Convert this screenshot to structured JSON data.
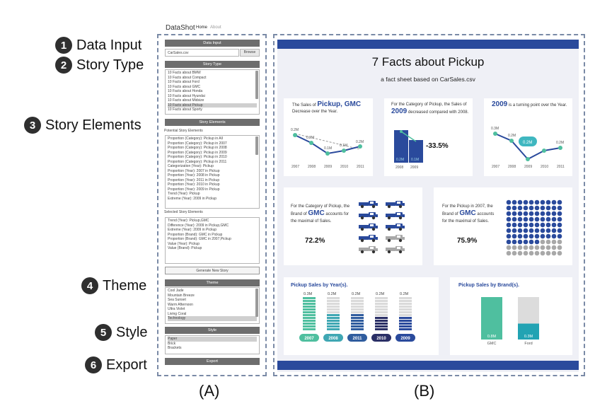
{
  "steps": [
    {
      "num": "1",
      "label": "Data Input"
    },
    {
      "num": "2",
      "label": "Story Type"
    },
    {
      "num": "3",
      "label": "Story Elements"
    },
    {
      "num": "4",
      "label": "Theme"
    },
    {
      "num": "5",
      "label": "Style"
    },
    {
      "num": "6",
      "label": "Export"
    }
  ],
  "captions": {
    "a": "(A)",
    "b": "(B)"
  },
  "app": {
    "title": "DataShot",
    "nav": [
      "Home",
      "About"
    ]
  },
  "data_input": {
    "header": "Data Input",
    "file": "CarSales.csv",
    "browse": "Browse"
  },
  "story_type": {
    "header": "Story Type",
    "items": [
      "10 Facts about BMW",
      "10 Facts about Compact",
      "10 Facts about Ford",
      "10 Facts about GMC",
      "10 Facts about Honda",
      "10 Facts about Hyundai",
      "10 Facts about Midsize",
      "10 Facts about Pickup",
      "10 Facts about Sporty"
    ],
    "selected": 7
  },
  "story_elements": {
    "header": "Story Elements",
    "potential_label": "Potential Story Elements",
    "potential": [
      "Proportion (Category): Pickup in All",
      "Proportion (Category): Pickup in 2007",
      "Proportion (Category): Pickup in 2008",
      "Proportion (Category): Pickup in 2009",
      "Proportion (Category): Pickup in 2010",
      "Proportion (Category): Pickup in 2011",
      "Categorization (Year): Pickup",
      "Proportion (Year): 2007 in Pickup",
      "Proportion (Year): 2008 in Pickup",
      "Proportion (Year): 2011 in Pickup",
      "Proportion (Year): 2010 in Pickup",
      "Proportion (Year): 2009 in Pickup",
      "Trend (Year): Pickup",
      "Extreme (Year): 2009 in Pickup"
    ],
    "selected_label": "Selected Story Elements",
    "selected": [
      "Trend (Year): Pickup,GMC",
      "Difference (Year): 2009 in Pickup,GMC",
      "Extreme (Year): 2009 in Pickup",
      "Proportion (Brand): GMC in Pickup",
      "Proportion (Brand): GMC in 2007,Pickup",
      "Value (Year): Pickup",
      "Value (Brand): Pickup"
    ],
    "generate": "Generate New Story"
  },
  "theme": {
    "header": "Theme",
    "items": [
      "Cool Jade",
      "Mountain Breeze",
      "Sea Sunset",
      "Warm Afternoon",
      "Ultra Violet",
      "Living Coral",
      "Technology"
    ],
    "selected": 6
  },
  "style": {
    "header": "Style",
    "items": [
      "Paper",
      "Brick",
      "Brackets"
    ],
    "selected": 0
  },
  "export": {
    "header": "Export"
  },
  "sheet": {
    "title": "7 Facts about Pickup",
    "subtitle": "a fact sheet based on CarSales.csv",
    "fact1": {
      "pre": "The Sales of ",
      "bold": "Pickup, GMC",
      "post": "Decrease over the Year.",
      "labels": [
        "0.2M",
        "0.2M",
        "0.1M",
        "0.1M",
        "0.2M"
      ],
      "years": [
        "2007",
        "2008",
        "2009",
        "2010",
        "2011"
      ]
    },
    "fact2": {
      "pre": "For the Category of Pickup, the Sales of ",
      "bold": "2009",
      "post": " decreased compared with 2008.",
      "value": "-33.5%",
      "bar_labels": [
        "0.2M",
        "0.1M"
      ],
      "years": [
        "2008",
        "2009"
      ]
    },
    "fact3": {
      "bold": "2009",
      "post": " is a turning point over the Year.",
      "labels": [
        "0.3M",
        "0.2M",
        "0.2M"
      ],
      "callout": "0.2M",
      "years": [
        "2007",
        "2008",
        "2009",
        "2010",
        "2011"
      ]
    },
    "fact4": {
      "pre": "For the Category of Pickup, the Brand of ",
      "bold": "GMC",
      "post": " accounts for the maximal of Sales.",
      "value": "72.2%",
      "highlighted": 13,
      "total": 18
    },
    "fact5": {
      "pre": "For the Pickup in 2007, the Brand of ",
      "bold": "GMC",
      "post": " accounts for the maximal of Sales.",
      "value": "75.9%",
      "highlighted": 76,
      "total": 100
    },
    "fact6": {
      "title": "Pickup Sales by Year(s)."
    },
    "fact7": {
      "title": "Pickup Sales by Brand(s)."
    }
  },
  "chart_data": [
    {
      "type": "bar",
      "title": "Pickup Sales by Year(s).",
      "categories": [
        "2007",
        "2008",
        "2011",
        "2010",
        "2009"
      ],
      "values": [
        0.3,
        0.2,
        0.2,
        0.2,
        0.2
      ],
      "value_labels": [
        "0.3M",
        "0.2M",
        "0.2M",
        "0.2M",
        "0.2M"
      ],
      "colors": [
        "#4fbf9f",
        "#3fa7b3",
        "#2f5c9e",
        "#2a2f66",
        "#2a4a9c"
      ]
    },
    {
      "type": "bar",
      "title": "Pickup Sales by Brand(s).",
      "categories": [
        "GMC",
        "Ford"
      ],
      "values": [
        0.8,
        0.3
      ],
      "value_labels": [
        "0.8M",
        "0.3M"
      ],
      "colors": [
        "#4fbf9f",
        "#22a3b3"
      ]
    }
  ]
}
